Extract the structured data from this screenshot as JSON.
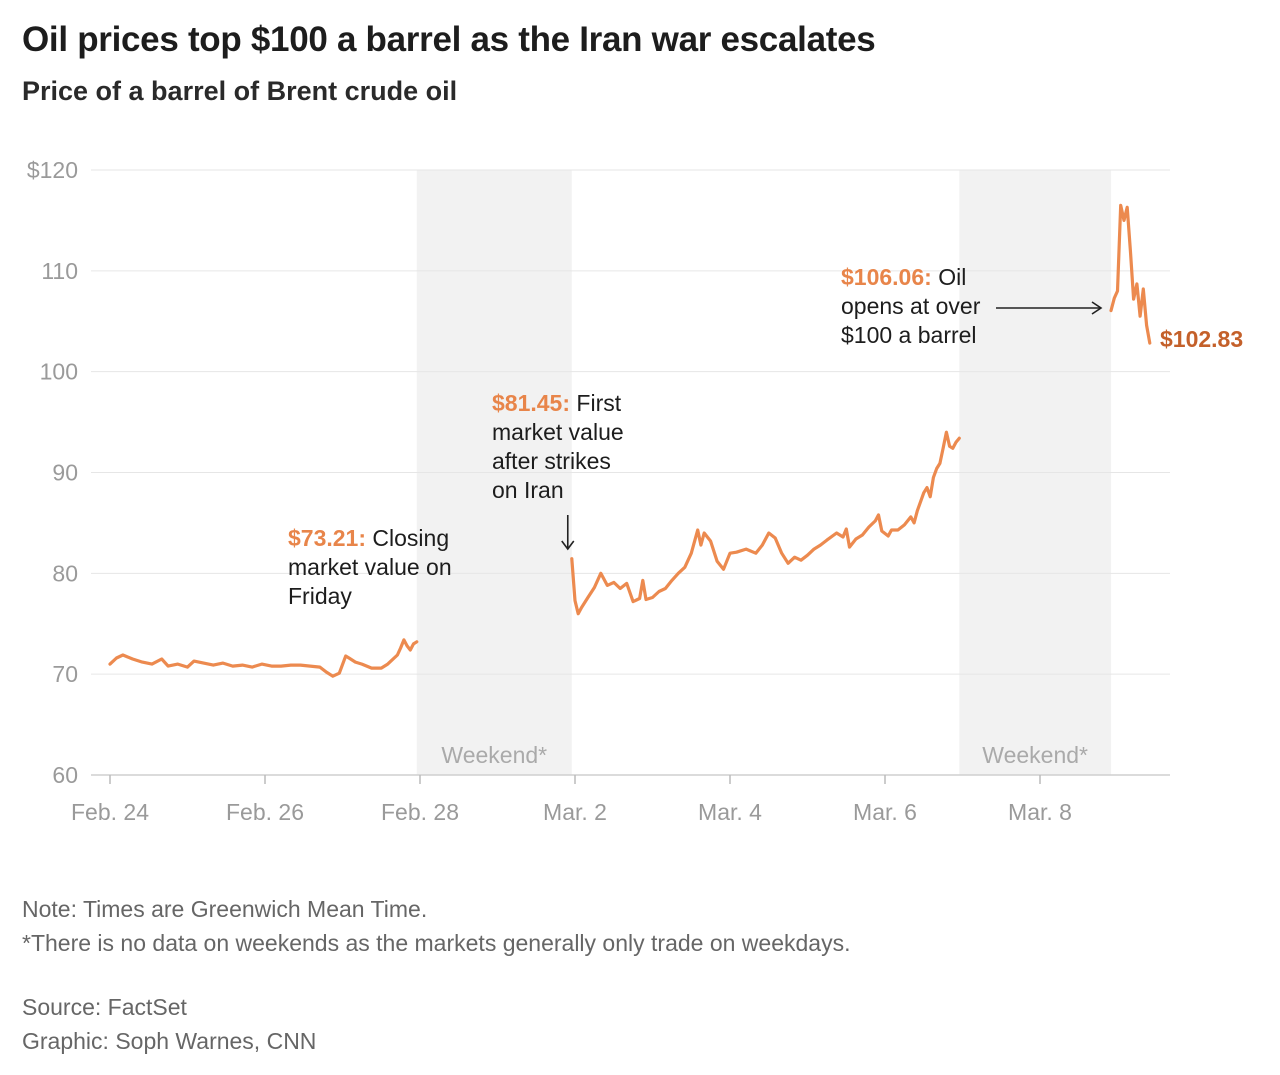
{
  "title": "Oil prices top $100 a barrel as the Iran war escalates",
  "subtitle": "Price of a barrel of Brent crude oil",
  "notes": {
    "note": "Note: Times are Greenwich Mean Time.",
    "weekend_note": "*There is no data on weekends as the markets generally only trade on weekdays.",
    "source": "Source: FactSet",
    "graphic": "Graphic: Soph Warnes, CNN"
  },
  "colors": {
    "line": "#ec8a4f",
    "highlight": "#e8854a",
    "end_label": "#c4602a",
    "weekend_band": "#f2f2f2",
    "grid": "#e6e6e6",
    "axis_text": "#9a9a9a"
  },
  "chart_data": {
    "type": "line",
    "title": "Oil prices top $100 a barrel as the Iran war escalates",
    "subtitle": "Price of a barrel of Brent crude oil",
    "xlabel": "",
    "ylabel": "",
    "ylim": [
      60,
      120
    ],
    "xlim": [
      "2026-02-24",
      "2026-03-09"
    ],
    "yticks": [
      60,
      70,
      80,
      90,
      100,
      110,
      120
    ],
    "ytick_labels": [
      "60",
      "70",
      "80",
      "90",
      "100",
      "110",
      "$120"
    ],
    "xticks": [
      "2026-02-24",
      "2026-02-26",
      "2026-02-28",
      "2026-03-02",
      "2026-03-04",
      "2026-03-06",
      "2026-03-08"
    ],
    "xtick_labels": [
      "Feb. 24",
      "Feb. 26",
      "Feb. 28",
      "Mar. 2",
      "Mar. 4",
      "Mar. 6",
      "Mar. 8"
    ],
    "grid": "horizontal",
    "shaded_regions": [
      {
        "label": "Weekend*",
        "from": "2026-02-27T23:00",
        "to": "2026-03-01T23:00"
      },
      {
        "label": "Weekend*",
        "from": "2026-03-06T23:00",
        "to": "2026-03-08T22:00"
      }
    ],
    "series": [
      {
        "points": [
          [
            "2026-02-24T00:00",
            71.0
          ],
          [
            "2026-02-24T02:00",
            71.6
          ],
          [
            "2026-02-24T04:00",
            71.9
          ],
          [
            "2026-02-24T07:00",
            71.5
          ],
          [
            "2026-02-24T10:00",
            71.2
          ],
          [
            "2026-02-24T13:00",
            71.0
          ],
          [
            "2026-02-24T16:00",
            71.5
          ],
          [
            "2026-02-24T18:00",
            70.8
          ],
          [
            "2026-02-24T21:00",
            71.0
          ],
          [
            "2026-02-25T00:00",
            70.7
          ],
          [
            "2026-02-25T02:00",
            71.3
          ],
          [
            "2026-02-25T05:00",
            71.1
          ],
          [
            "2026-02-25T08:00",
            70.9
          ],
          [
            "2026-02-25T11:00",
            71.1
          ],
          [
            "2026-02-25T14:00",
            70.8
          ],
          [
            "2026-02-25T17:00",
            70.9
          ],
          [
            "2026-02-25T20:00",
            70.7
          ],
          [
            "2026-02-25T23:00",
            71.0
          ],
          [
            "2026-02-26T02:00",
            70.8
          ],
          [
            "2026-02-26T05:00",
            70.8
          ],
          [
            "2026-02-26T08:00",
            70.9
          ],
          [
            "2026-02-26T11:00",
            70.9
          ],
          [
            "2026-02-26T14:00",
            70.8
          ],
          [
            "2026-02-26T17:00",
            70.7
          ],
          [
            "2026-02-26T19:00",
            70.2
          ],
          [
            "2026-02-26T21:00",
            69.8
          ],
          [
            "2026-02-26T23:00",
            70.1
          ],
          [
            "2026-02-27T01:00",
            71.8
          ],
          [
            "2026-02-27T02:00",
            71.6
          ],
          [
            "2026-02-27T04:00",
            71.2
          ],
          [
            "2026-02-27T06:00",
            71.0
          ],
          [
            "2026-02-27T09:00",
            70.6
          ],
          [
            "2026-02-27T12:00",
            70.6
          ],
          [
            "2026-02-27T14:00",
            71.0
          ],
          [
            "2026-02-27T17:00",
            71.9
          ],
          [
            "2026-02-27T18:00",
            72.6
          ],
          [
            "2026-02-27T19:00",
            73.4
          ],
          [
            "2026-02-27T20:00",
            72.8
          ],
          [
            "2026-02-27T21:00",
            72.4
          ],
          [
            "2026-02-27T22:00",
            73.0
          ],
          [
            "2026-02-27T23:00",
            73.21
          ],
          [
            "2026-03-01T23:00",
            81.45
          ],
          [
            "2026-03-02T00:00",
            77.3
          ],
          [
            "2026-03-02T01:00",
            76.0
          ],
          [
            "2026-03-02T02:00",
            76.6
          ],
          [
            "2026-03-02T04:00",
            77.6
          ],
          [
            "2026-03-02T06:00",
            78.6
          ],
          [
            "2026-03-02T08:00",
            80.0
          ],
          [
            "2026-03-02T10:00",
            78.8
          ],
          [
            "2026-03-02T12:00",
            79.1
          ],
          [
            "2026-03-02T14:00",
            78.5
          ],
          [
            "2026-03-02T16:00",
            79.0
          ],
          [
            "2026-03-02T18:00",
            77.2
          ],
          [
            "2026-03-02T20:00",
            77.5
          ],
          [
            "2026-03-02T21:00",
            79.3
          ],
          [
            "2026-03-02T22:00",
            77.4
          ],
          [
            "2026-03-03T00:00",
            77.6
          ],
          [
            "2026-03-03T02:00",
            78.2
          ],
          [
            "2026-03-03T04:00",
            78.5
          ],
          [
            "2026-03-03T06:00",
            79.3
          ],
          [
            "2026-03-03T08:00",
            80.0
          ],
          [
            "2026-03-03T10:00",
            80.6
          ],
          [
            "2026-03-03T12:00",
            82.0
          ],
          [
            "2026-03-03T14:00",
            84.3
          ],
          [
            "2026-03-03T15:00",
            82.8
          ],
          [
            "2026-03-03T16:00",
            84.0
          ],
          [
            "2026-03-03T18:00",
            83.2
          ],
          [
            "2026-03-03T20:00",
            81.2
          ],
          [
            "2026-03-03T22:00",
            80.4
          ],
          [
            "2026-03-04T00:00",
            82.0
          ],
          [
            "2026-03-04T02:00",
            82.1
          ],
          [
            "2026-03-04T05:00",
            82.4
          ],
          [
            "2026-03-04T08:00",
            82.0
          ],
          [
            "2026-03-04T10:00",
            82.8
          ],
          [
            "2026-03-04T12:00",
            84.0
          ],
          [
            "2026-03-04T14:00",
            83.5
          ],
          [
            "2026-03-04T16:00",
            82.0
          ],
          [
            "2026-03-04T18:00",
            81.0
          ],
          [
            "2026-03-04T20:00",
            81.6
          ],
          [
            "2026-03-04T22:00",
            81.3
          ],
          [
            "2026-03-05T00:00",
            81.8
          ],
          [
            "2026-03-05T02:00",
            82.4
          ],
          [
            "2026-03-05T04:00",
            82.8
          ],
          [
            "2026-03-05T06:00",
            83.3
          ],
          [
            "2026-03-05T09:00",
            84.0
          ],
          [
            "2026-03-05T11:00",
            83.6
          ],
          [
            "2026-03-05T12:00",
            84.4
          ],
          [
            "2026-03-05T13:00",
            82.6
          ],
          [
            "2026-03-05T15:00",
            83.4
          ],
          [
            "2026-03-05T17:00",
            83.8
          ],
          [
            "2026-03-05T19:00",
            84.6
          ],
          [
            "2026-03-05T21:00",
            85.2
          ],
          [
            "2026-03-05T22:00",
            85.8
          ],
          [
            "2026-03-05T23:00",
            84.2
          ],
          [
            "2026-03-06T01:00",
            83.7
          ],
          [
            "2026-03-06T02:00",
            84.3
          ],
          [
            "2026-03-06T04:00",
            84.3
          ],
          [
            "2026-03-06T06:00",
            84.8
          ],
          [
            "2026-03-06T08:00",
            85.6
          ],
          [
            "2026-03-06T09:00",
            85.0
          ],
          [
            "2026-03-06T10:00",
            86.2
          ],
          [
            "2026-03-06T12:00",
            88.0
          ],
          [
            "2026-03-06T13:00",
            88.5
          ],
          [
            "2026-03-06T14:00",
            87.6
          ],
          [
            "2026-03-06T15:00",
            89.5
          ],
          [
            "2026-03-06T16:00",
            90.4
          ],
          [
            "2026-03-06T17:00",
            90.9
          ],
          [
            "2026-03-06T18:00",
            92.4
          ],
          [
            "2026-03-06T19:00",
            94.0
          ],
          [
            "2026-03-06T20:00",
            92.6
          ],
          [
            "2026-03-06T21:00",
            92.4
          ],
          [
            "2026-03-06T22:00",
            93.0
          ],
          [
            "2026-03-06T23:00",
            93.4
          ],
          [
            "2026-03-08T22:00",
            106.06
          ],
          [
            "2026-03-08T23:00",
            107.3
          ],
          [
            "2026-03-09T00:00",
            108.0
          ],
          [
            "2026-03-09T01:00",
            116.5
          ],
          [
            "2026-03-09T02:00",
            115.0
          ],
          [
            "2026-03-09T03:00",
            116.3
          ],
          [
            "2026-03-09T04:00",
            112.0
          ],
          [
            "2026-03-09T05:00",
            107.2
          ],
          [
            "2026-03-09T06:00",
            108.7
          ],
          [
            "2026-03-09T07:00",
            105.5
          ],
          [
            "2026-03-09T08:00",
            108.2
          ],
          [
            "2026-03-09T09:00",
            104.6
          ],
          [
            "2026-03-09T10:00",
            102.83
          ]
        ]
      }
    ],
    "annotations": [
      {
        "value_text": "$73.21:",
        "text": [
          "Closing",
          "market value on",
          "Friday"
        ],
        "x": "2026-02-27T23:00",
        "y": 73.21
      },
      {
        "value_text": "$81.45:",
        "text": [
          "First",
          "market value",
          "after strikes",
          "on Iran"
        ],
        "x": "2026-03-01T23:00",
        "y": 81.45
      },
      {
        "value_text": "$106.06:",
        "text": [
          "Oil",
          "opens at over",
          "$100 a barrel"
        ],
        "x": "2026-03-08T22:00",
        "y": 106.06
      },
      {
        "value_text": "$102.83",
        "text": [],
        "x": "2026-03-09T10:00",
        "y": 102.83
      }
    ]
  }
}
